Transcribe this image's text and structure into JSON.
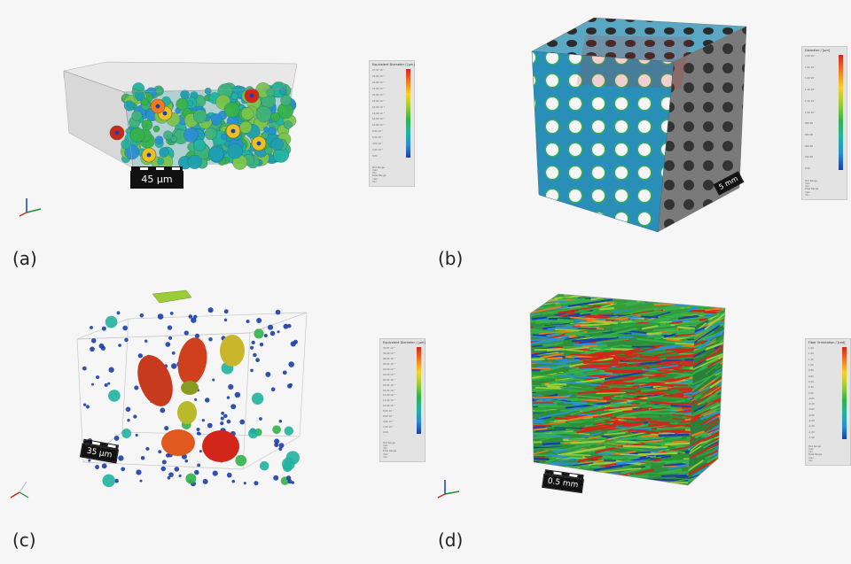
{
  "panels": [
    {
      "label": "(a)",
      "scalebar": "45 µm",
      "legend_title": "Equivalent Diameter / [µm]",
      "legend_ticks": [
        "27.47 10⁻³",
        "26.00 10⁻³",
        "24.00 10⁻³",
        "22.00 10⁻³",
        "20.00 10⁻³",
        "18.00 10⁻³",
        "16.00 10⁻³",
        "14.00 10⁻³",
        "12.00 10⁻³",
        "10.00 10⁻³",
        "8.00 10⁻³",
        "6.00 10⁻³",
        "4.00 10⁻³",
        "2.00 10⁻³",
        "0.00"
      ],
      "legend_foot": [
        "Plot Range",
        "max",
        "min",
        "Data Range",
        "max",
        "min"
      ]
    },
    {
      "label": "(b)",
      "scalebar": "5 mm",
      "legend_title": "Diameter / [µm]",
      "legend_ticks": [
        "2.00 10³",
        "1.80 10³",
        "1.60 10³",
        "1.40 10³",
        "1.20 10³",
        "1.00 10³",
        "800.00",
        "600.00",
        "400.00",
        "200.00",
        "0.00"
      ],
      "legend_foot": [
        "Plot Range",
        "max",
        "min",
        "Data Range",
        "max",
        "min"
      ]
    },
    {
      "label": "(c)",
      "scalebar": "35 µm",
      "legend_title": "Equivalent Diameter / [µm]",
      "legend_ticks": [
        "32.87 10⁻³",
        "30.00 10⁻³",
        "28.00 10⁻³",
        "26.00 10⁻³",
        "24.00 10⁻³",
        "22.00 10⁻³",
        "20.00 10⁻³",
        "18.00 10⁻³",
        "16.00 10⁻³",
        "14.00 10⁻³",
        "12.00 10⁻³",
        "10.00 10⁻³",
        "8.00 10⁻³",
        "6.00 10⁻³",
        "4.00 10⁻³",
        "2.00 10⁻³",
        "0.00"
      ],
      "legend_foot": [
        "Plot Range",
        "max",
        "min",
        "Data Range",
        "max",
        "min"
      ]
    },
    {
      "label": "(d)",
      "scalebar": "0.5 mm",
      "legend_title": "Fiber Orientation / [rad]",
      "legend_ticks": [
        "1.56",
        "1.40",
        "1.20",
        "1.00",
        "0.80",
        "0.60",
        "0.40",
        "0.20",
        "0.00",
        "-0.20",
        "-0.40",
        "-0.60",
        "-0.80",
        "-1.00",
        "-1.20",
        "-1.40",
        "-1.56"
      ],
      "legend_foot": [
        "Plot Range",
        "max",
        "min",
        "Data Range",
        "max",
        "min"
      ]
    }
  ],
  "colors": {
    "background": "#f6f6f6",
    "colormap": [
      "#d2261b",
      "#f07a22",
      "#f6d32a",
      "#9ccc3a",
      "#35b24a",
      "#22b3a0",
      "#2a8fd4",
      "#1b3fa8"
    ]
  }
}
